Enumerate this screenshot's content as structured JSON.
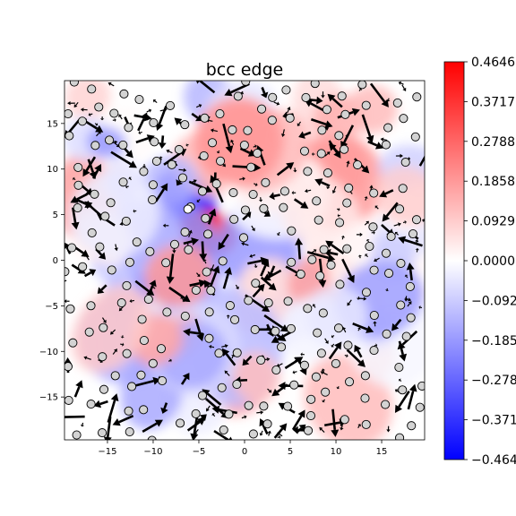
{
  "chart_data": {
    "type": "heatmap",
    "title": "bcc edge",
    "xlabel": "",
    "ylabel": "",
    "xlim": [
      -19.7,
      19.7
    ],
    "ylim": [
      -19.7,
      19.7
    ],
    "x_ticks": [
      -15,
      -10,
      -5,
      0,
      5,
      10,
      15
    ],
    "y_ticks": [
      -15,
      -10,
      -5,
      0,
      5,
      10,
      15
    ],
    "x_tick_labels": [
      "−15",
      "−10",
      "−5",
      "0",
      "5",
      "10",
      "15"
    ],
    "y_tick_labels": [
      "−15",
      "−10",
      "−5",
      "0",
      "5",
      "10",
      "15"
    ],
    "grid": false,
    "colormap": "bwr",
    "colors": {
      "negative": "#0000ff",
      "zero": "#ffffff",
      "positive": "#ff0000",
      "atom_fill": "#d3d3d3",
      "atom_edge": "#000000",
      "arrow": "#000000"
    },
    "colorbar": {
      "range": [
        -0.4646,
        0.4646
      ],
      "ticks": [
        0.4646,
        0.3717,
        0.2788,
        0.1858,
        0.0929,
        0.0,
        -0.0929,
        -0.1858,
        -0.2788,
        -0.3717,
        -0.4646
      ],
      "tick_labels": [
        "0.4646",
        "0.3717",
        "0.2788",
        "0.1858",
        "0.0929",
        "0.0000",
        "−0.0929",
        "−0.1858",
        "−0.2788",
        "−0.3717",
        "−0.4646"
      ]
    },
    "field_extrema": [
      {
        "x": -6.5,
        "y": 6.5,
        "value": -0.4646
      },
      {
        "x": -4.0,
        "y": 3.0,
        "value": 0.4646
      }
    ],
    "highlighted_atom": {
      "x": -6.2,
      "y": 5.6
    },
    "atom_lattice": "bcc",
    "atom_count": 220,
    "arrow_count": 320
  }
}
